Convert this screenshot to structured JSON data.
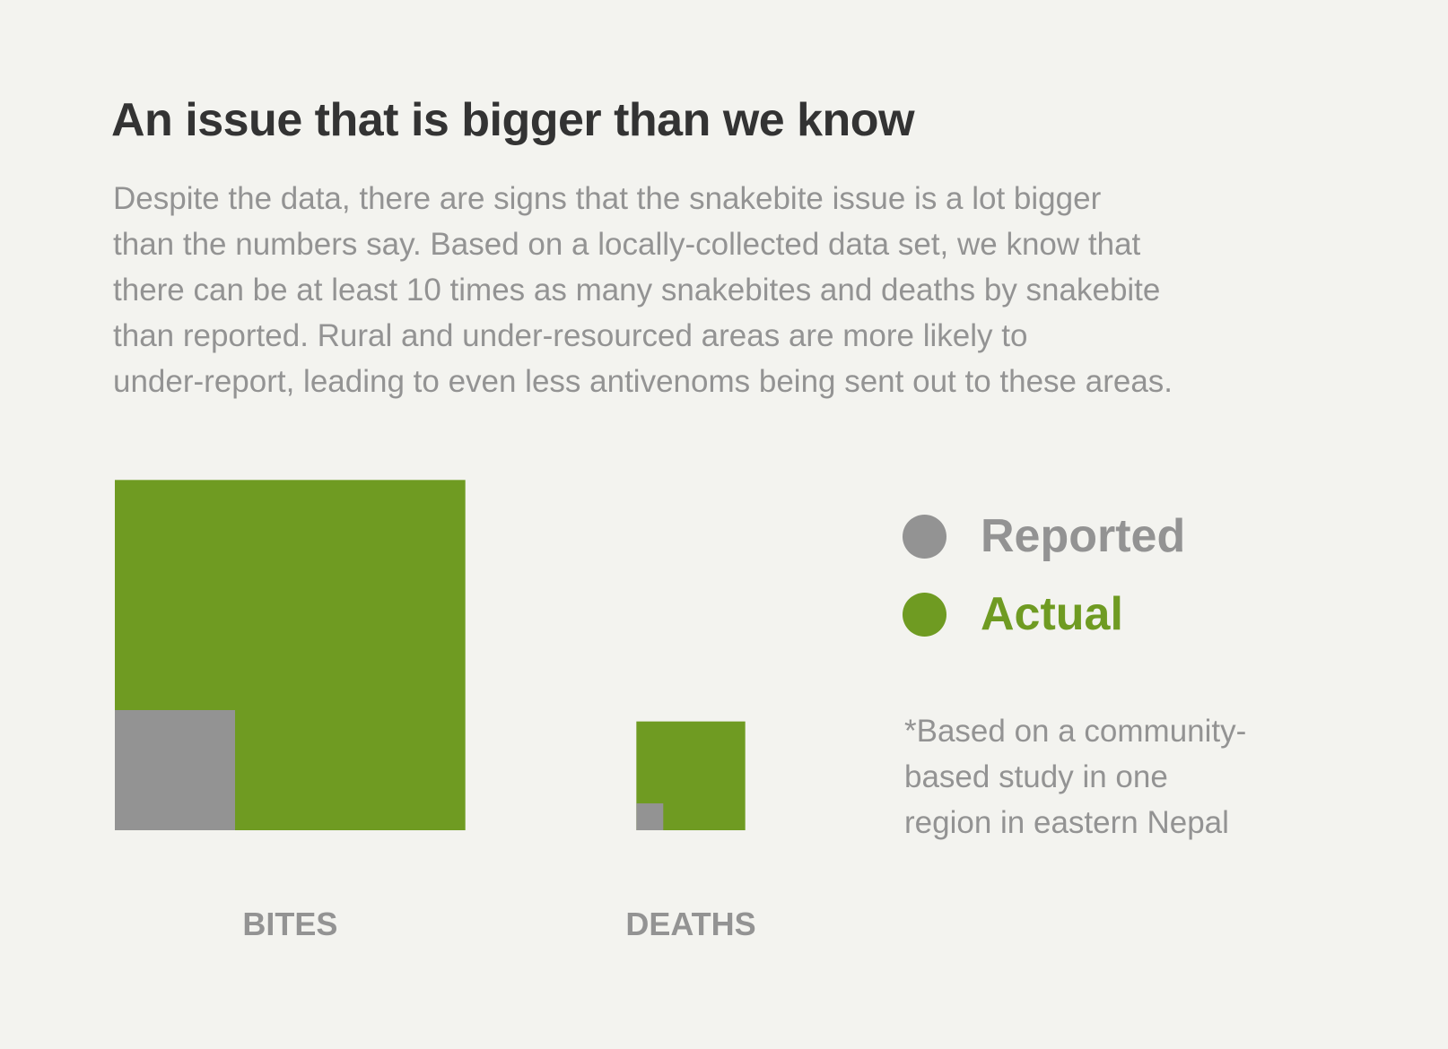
{
  "title": "An issue that is bigger than we know",
  "description_lines": [
    "Despite the data, there are signs that the snakebite issue is a lot bigger",
    "than the numbers say. Based on a locally-collected data set, we know that",
    "there can be at least 10 times as many snakebites and deaths by snakebite",
    "than reported. Rural and under-resourced areas are more likely to",
    "under-report, leading to even less antivenoms being sent out to these areas."
  ],
  "legend": [
    {
      "label": "Reported",
      "color": "#939393"
    },
    {
      "label": "Actual",
      "color": "#6f9b22"
    }
  ],
  "note_lines": [
    "*Based on a community-",
    "based study in one",
    "region in eastern Nepal"
  ],
  "colors": {
    "reported": "#939393",
    "actual": "#6f9b22",
    "label": "#939393",
    "background": "#f3f3ef"
  },
  "chart_data": {
    "type": "area",
    "encoding": "square-area",
    "categories": [
      "BITES",
      "DEATHS"
    ],
    "series": [
      {
        "name": "Reported",
        "values": [
          1,
          0.05
        ]
      },
      {
        "name": "Actual",
        "values": [
          8.5,
          0.82
        ]
      }
    ],
    "units": "relative (Reported bites = 1)"
  }
}
